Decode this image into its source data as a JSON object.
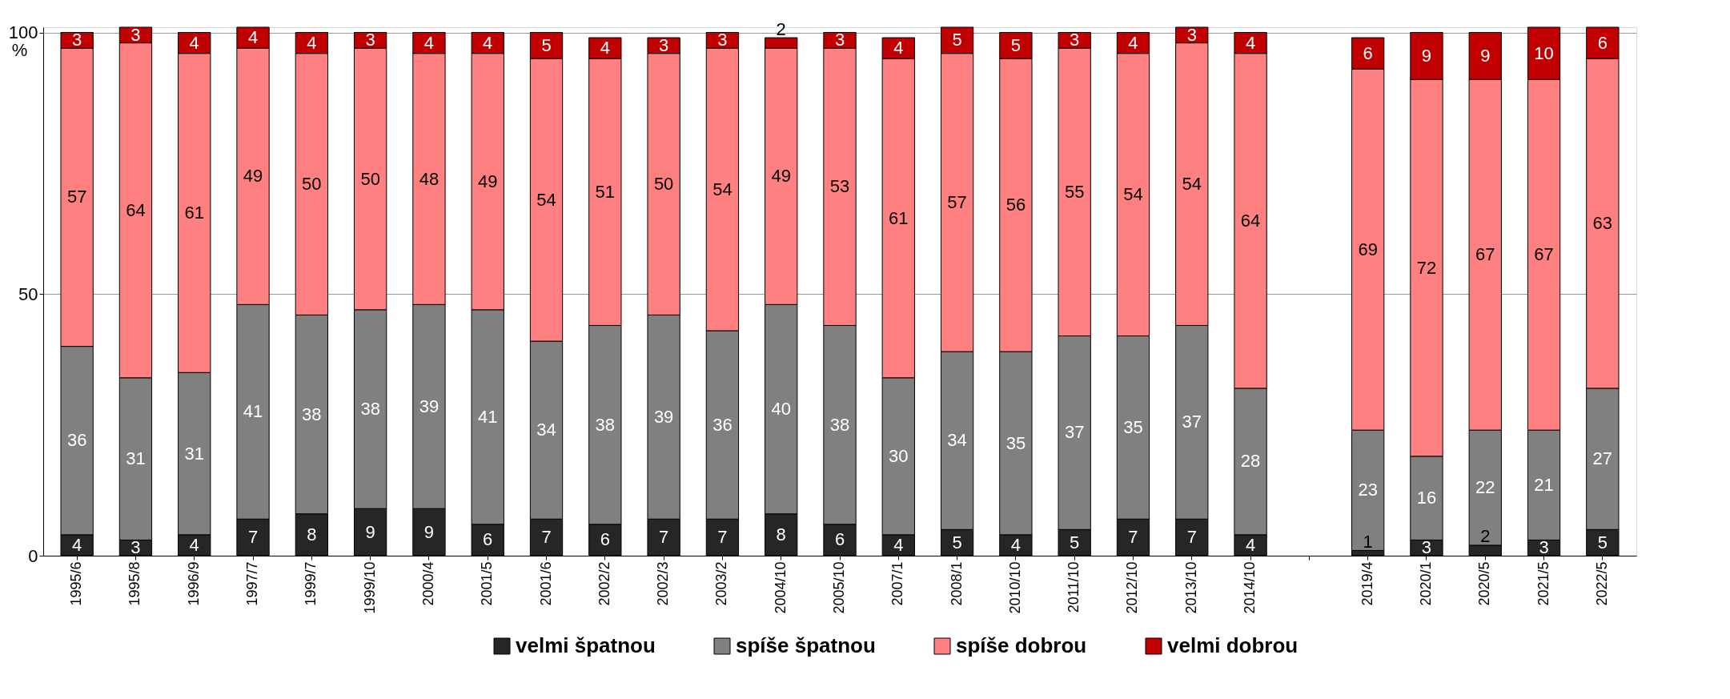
{
  "chart_data": {
    "type": "bar",
    "stacked": true,
    "ylabel": "%",
    "categories": [
      "1995/6",
      "1995/8",
      "1996/9",
      "1997/7",
      "1999/7",
      "1999/10",
      "2000/4",
      "2001/5",
      "2001/6",
      "2002/2",
      "2002/3",
      "2003/2",
      "2004/10",
      "2005/10",
      "2007/1",
      "2008/1",
      "2010/10",
      "2011/10",
      "2012/10",
      "2013/10",
      "2014/10",
      null,
      "2019/4",
      "2020/1",
      "2020/5",
      "2021/5",
      "2022/5"
    ],
    "series": [
      {
        "name": "velmi špatnou",
        "color": "#262626",
        "values": [
          4,
          3,
          4,
          7,
          8,
          9,
          9,
          6,
          7,
          6,
          7,
          7,
          8,
          6,
          4,
          5,
          4,
          5,
          7,
          7,
          4,
          null,
          1,
          3,
          2,
          3,
          5
        ]
      },
      {
        "name": "spíše špatnou",
        "color": "#808080",
        "values": [
          36,
          31,
          31,
          41,
          38,
          38,
          39,
          41,
          34,
          38,
          39,
          36,
          40,
          38,
          30,
          34,
          35,
          37,
          35,
          37,
          28,
          null,
          23,
          16,
          22,
          21,
          27
        ]
      },
      {
        "name": "spíše dobrou",
        "color": "#ff8080",
        "values": [
          57,
          64,
          61,
          49,
          50,
          50,
          48,
          49,
          54,
          51,
          50,
          54,
          49,
          53,
          61,
          57,
          56,
          55,
          54,
          54,
          64,
          null,
          69,
          72,
          67,
          67,
          63
        ]
      },
      {
        "name": "velmi dobrou",
        "color": "#c00000",
        "values": [
          3,
          3,
          4,
          4,
          4,
          3,
          4,
          4,
          5,
          4,
          3,
          3,
          2,
          3,
          4,
          5,
          5,
          3,
          4,
          3,
          4,
          null,
          6,
          9,
          9,
          10,
          6
        ]
      }
    ],
    "ylim": [
      0,
      101
    ],
    "yticks": [
      0,
      50,
      100
    ],
    "grid": "y",
    "legend": "bottom",
    "data_labels": true
  }
}
